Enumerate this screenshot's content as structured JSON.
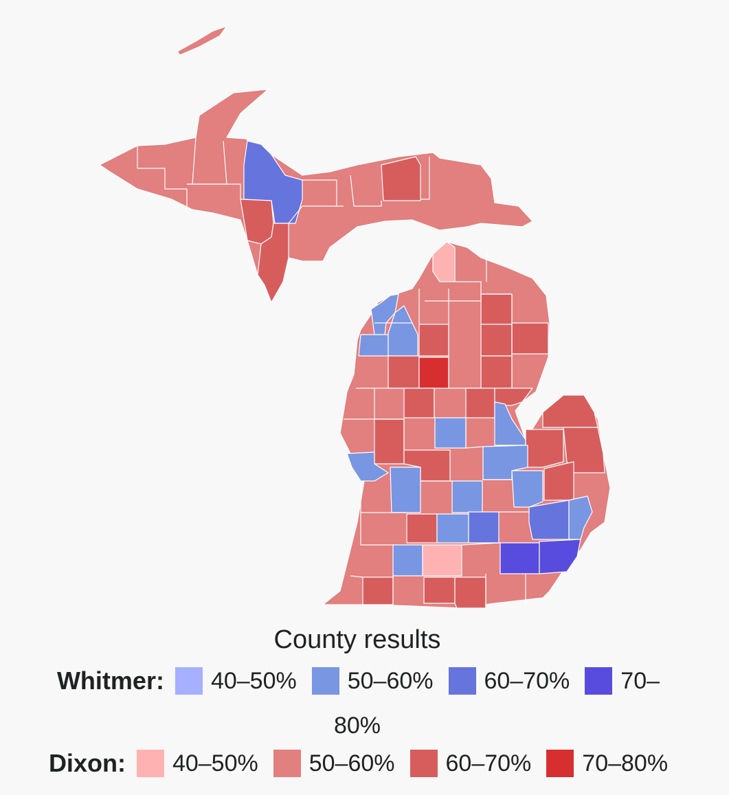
{
  "caption": "County results",
  "legend": {
    "whitmer": {
      "name": "Whitmer:",
      "items": [
        {
          "label": "40–50%",
          "color": "#a5b0ff"
        },
        {
          "label": "50–60%",
          "color": "#7996e2"
        },
        {
          "label": "60–70%",
          "color": "#6674de"
        },
        {
          "label": "70–",
          "color": "#584cde"
        }
      ],
      "wrap": "80%"
    },
    "dixon": {
      "name": "Dixon:",
      "items": [
        {
          "label": "40–50%",
          "color": "#ffb2b2"
        },
        {
          "label": "50–60%",
          "color": "#e27f7f"
        },
        {
          "label": "60–70%",
          "color": "#d75d5d"
        },
        {
          "label": "70–80%",
          "color": "#d72f30"
        }
      ]
    }
  },
  "colors": {
    "w50": "#7996e2",
    "w60": "#6674de",
    "w70": "#584cde",
    "d40": "#ffb2b2",
    "d50": "#e27f7f",
    "d60": "#d75d5d",
    "d70": "#d72f30"
  }
}
